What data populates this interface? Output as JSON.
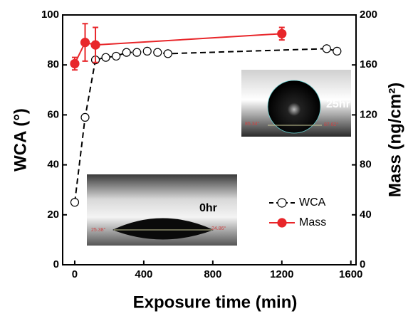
{
  "chart_data": {
    "type": "scatter",
    "xlabel": "Exposure time (min)",
    "ylabel": "WCA (°)",
    "y2label": "Mass (ng/cm²)",
    "xlim": [
      -70,
      1630
    ],
    "xticks": [
      0,
      400,
      800,
      1200,
      1600
    ],
    "ylim": [
      0,
      100
    ],
    "yticks": [
      0,
      20,
      40,
      60,
      80,
      100
    ],
    "y2lim": [
      0,
      200
    ],
    "y2ticks": [
      0,
      40,
      80,
      120,
      160,
      200
    ],
    "legend": "lower right",
    "series": [
      {
        "name": "WCA",
        "color": "#000000",
        "line": "dashed",
        "marker": "open-circle",
        "x": [
          0,
          60,
          120,
          180,
          240,
          300,
          360,
          420,
          480,
          540,
          1460,
          1520
        ],
        "values": [
          25,
          59,
          82,
          83,
          83.5,
          85,
          85,
          85.5,
          85,
          84.5,
          86.5,
          85.5
        ]
      },
      {
        "name": "Mass",
        "color": "#e8262a",
        "line": "solid",
        "marker": "filled-circle",
        "axis": "y2",
        "x": [
          0,
          60,
          120,
          1200
        ],
        "values": [
          161,
          178,
          176,
          185
        ],
        "errors": [
          5,
          15,
          14,
          5
        ]
      }
    ],
    "insets": [
      {
        "label": "0hr",
        "left_angle": "25.38°",
        "right_angle": "24.86°"
      },
      {
        "label": "25hr",
        "left_angle": "85.34°",
        "right_angle": "87.62°"
      }
    ]
  }
}
